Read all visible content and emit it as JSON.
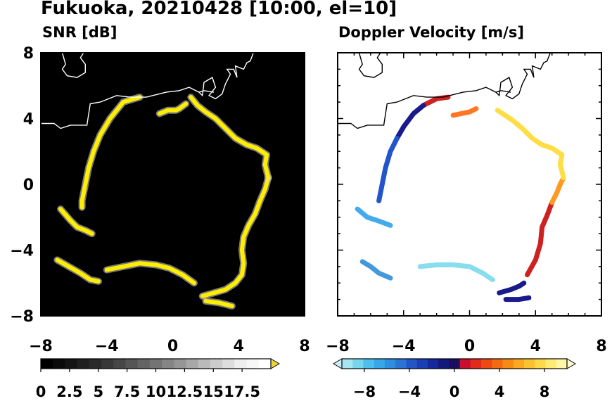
{
  "figure": {
    "title": "Fukuoka, 20210428 [10:00, el=10]"
  },
  "chart_data": [
    {
      "type": "heatmap",
      "title": "SNR [dB]",
      "xlim": [
        -8,
        8
      ],
      "ylim": [
        -8,
        8
      ],
      "xticks": [
        -8,
        -4,
        0,
        4,
        8
      ],
      "yticks": [
        -8,
        -4,
        0,
        4,
        8
      ],
      "xtick_labels": [
        "−8",
        "−4",
        "0",
        "4",
        "8"
      ],
      "ytick_labels": [
        "−8",
        "−4",
        "0",
        "4",
        "8"
      ],
      "background": "#000000",
      "features": [
        {
          "name": "west-shore",
          "color": "#ffee00",
          "points": [
            [
              -2,
              5.3
            ],
            [
              -3,
              5.0
            ],
            [
              -3.8,
              4.0
            ],
            [
              -4.4,
              3.0
            ],
            [
              -4.8,
              2.0
            ],
            [
              -5.1,
              1.0
            ],
            [
              -5.3,
              0
            ],
            [
              -5.5,
              -1.0
            ],
            [
              -5.5,
              -1.4
            ]
          ]
        },
        {
          "name": "southwest-spit",
          "color": "#ffee00",
          "points": [
            [
              -6.8,
              -1.5
            ],
            [
              -6.2,
              -2.2
            ],
            [
              -5.8,
              -2.6
            ],
            [
              -5.3,
              -2.8
            ],
            [
              -4.9,
              -3.0
            ]
          ]
        },
        {
          "name": "south-shore-west",
          "color": "#ffee00",
          "points": [
            [
              -7.0,
              -4.6
            ],
            [
              -6.3,
              -5.0
            ],
            [
              -5.6,
              -5.4
            ],
            [
              -5.0,
              -5.8
            ],
            [
              -4.5,
              -5.9
            ]
          ]
        },
        {
          "name": "south-shore",
          "color": "#ffee00",
          "points": [
            [
              -4.0,
              -5.2
            ],
            [
              -3.0,
              -5.0
            ],
            [
              -2.0,
              -4.8
            ],
            [
              -1.0,
              -4.9
            ],
            [
              -0.2,
              -5.1
            ],
            [
              0.6,
              -5.5
            ],
            [
              1.3,
              -6.0
            ]
          ]
        },
        {
          "name": "southeast-shore",
          "color": "#ffee00",
          "points": [
            [
              1.8,
              -6.8
            ],
            [
              2.5,
              -6.6
            ],
            [
              3.2,
              -6.4
            ],
            [
              3.8,
              -6.0
            ],
            [
              4.2,
              -5.5
            ],
            [
              4.3,
              -4.8
            ],
            [
              4.2,
              -4.0
            ],
            [
              4.3,
              -3.2
            ],
            [
              4.6,
              -2.5
            ],
            [
              5.0,
              -1.8
            ],
            [
              5.3,
              -1.0
            ],
            [
              5.6,
              -0.3
            ],
            [
              5.8,
              0.4
            ]
          ]
        },
        {
          "name": "southeast-lower",
          "color": "#ffee00",
          "points": [
            [
              2.0,
              -7.1
            ],
            [
              2.8,
              -7.2
            ],
            [
              3.6,
              -7.4
            ]
          ]
        },
        {
          "name": "east-shore",
          "color": "#ffee00",
          "points": [
            [
              5.8,
              0.4
            ],
            [
              5.6,
              1.2
            ],
            [
              5.7,
              1.8
            ],
            [
              5.1,
              2.2
            ],
            [
              4.5,
              2.4
            ],
            [
              3.8,
              2.8
            ],
            [
              3.2,
              3.4
            ],
            [
              2.6,
              4.0
            ],
            [
              2.0,
              4.4
            ],
            [
              1.5,
              4.8
            ],
            [
              1.1,
              5.3
            ]
          ]
        },
        {
          "name": "north-shore",
          "color": "#ffee00",
          "points": [
            [
              -0.8,
              4.3
            ],
            [
              -0.3,
              4.5
            ],
            [
              0.2,
              4.5
            ],
            [
              0.4,
              4.6
            ],
            [
              0.8,
              4.9
            ]
          ]
        }
      ]
    },
    {
      "type": "heatmap",
      "title": "Doppler Velocity [m/s]",
      "xlim": [
        -8,
        8
      ],
      "ylim": [
        -8,
        8
      ],
      "xticks": [
        -8,
        -4,
        0,
        4,
        8
      ],
      "yticks": [
        -8,
        -4,
        0,
        4,
        8
      ],
      "xtick_labels": [
        "−8",
        "−4",
        "0",
        "4",
        "8"
      ],
      "ytick_labels": [
        "−8",
        "−4",
        "0",
        "4",
        "8"
      ],
      "background": "#ffffff",
      "features": [
        {
          "name": "west-shore-north",
          "color": "#cc2222",
          "points": [
            [
              -1.3,
              5.3
            ],
            [
              -2.0,
              5.2
            ],
            [
              -2.8,
              4.8
            ]
          ]
        },
        {
          "name": "west-shore-mid",
          "color": "#1a1a8c",
          "points": [
            [
              -2.8,
              4.8
            ],
            [
              -3.4,
              4.3
            ],
            [
              -4.0,
              3.5
            ],
            [
              -4.4,
              2.8
            ]
          ]
        },
        {
          "name": "west-shore-south",
          "color": "#2255cc",
          "points": [
            [
              -4.4,
              2.8
            ],
            [
              -4.8,
              2.0
            ],
            [
              -5.1,
              1.0
            ],
            [
              -5.3,
              0
            ],
            [
              -5.5,
              -1.0
            ]
          ]
        },
        {
          "name": "southwest-spit",
          "color": "#44aaee",
          "points": [
            [
              -6.8,
              -1.5
            ],
            [
              -6.2,
              -2.0
            ],
            [
              -5.6,
              -2.2
            ],
            [
              -4.8,
              -2.5
            ]
          ]
        },
        {
          "name": "south-shore-west",
          "color": "#4499dd",
          "points": [
            [
              -6.5,
              -4.7
            ],
            [
              -6.0,
              -5.0
            ],
            [
              -5.5,
              -5.4
            ],
            [
              -4.8,
              -5.7
            ]
          ]
        },
        {
          "name": "south-shore",
          "color": "#88ddee",
          "points": [
            [
              -3.0,
              -5.0
            ],
            [
              -2.0,
              -4.9
            ],
            [
              -1.0,
              -4.9
            ],
            [
              0,
              -5.0
            ],
            [
              0.8,
              -5.4
            ],
            [
              1.4,
              -5.8
            ]
          ]
        },
        {
          "name": "southeast-lower",
          "color": "#1a1a8c",
          "points": [
            [
              1.8,
              -6.6
            ],
            [
              2.5,
              -6.4
            ],
            [
              3.0,
              -6.2
            ],
            [
              3.3,
              -6.0
            ]
          ]
        },
        {
          "name": "southeast-tail",
          "color": "#1a1a8c",
          "points": [
            [
              2.2,
              -7.0
            ],
            [
              3.0,
              -7.0
            ],
            [
              3.6,
              -6.9
            ]
          ]
        },
        {
          "name": "southeast-upper",
          "color": "#cc2222",
          "points": [
            [
              3.5,
              -5.5
            ],
            [
              4.0,
              -4.6
            ],
            [
              4.3,
              -3.6
            ],
            [
              4.4,
              -2.6
            ],
            [
              4.7,
              -1.9
            ],
            [
              5.0,
              -1.1
            ]
          ]
        },
        {
          "name": "east-shore-lower",
          "color": "#ff9922",
          "points": [
            [
              5.0,
              -1.1
            ],
            [
              5.3,
              -0.5
            ],
            [
              5.5,
              0
            ],
            [
              5.7,
              0.4
            ]
          ]
        },
        {
          "name": "east-shore-upper",
          "color": "#ffdd44",
          "points": [
            [
              5.7,
              0.4
            ],
            [
              5.5,
              1.2
            ],
            [
              5.6,
              1.8
            ],
            [
              5.0,
              2.2
            ],
            [
              4.4,
              2.4
            ],
            [
              3.8,
              2.8
            ],
            [
              3.2,
              3.4
            ],
            [
              2.6,
              3.9
            ],
            [
              2.0,
              4.3
            ],
            [
              1.7,
              4.5
            ]
          ]
        },
        {
          "name": "north-shore",
          "color": "#ff7722",
          "points": [
            [
              -1.0,
              4.2
            ],
            [
              -0.5,
              4.3
            ],
            [
              0,
              4.4
            ],
            [
              0.4,
              4.6
            ]
          ]
        }
      ]
    }
  ],
  "coastline": {
    "color_on_dark": "#ffffff",
    "color_on_light": "#000000",
    "paths": [
      [
        [
          -8,
          3.7
        ],
        [
          -7.2,
          3.7
        ],
        [
          -6.8,
          3.4
        ],
        [
          -6.2,
          3.6
        ],
        [
          -5.2,
          3.6
        ],
        [
          -5.0,
          4.9
        ],
        [
          -4.4,
          5.0
        ],
        [
          -3.4,
          5.4
        ],
        [
          -2.6,
          5.3
        ],
        [
          -1.6,
          5.3
        ],
        [
          -0.4,
          5.6
        ],
        [
          0.4,
          5.7
        ],
        [
          1.0,
          5.9
        ],
        [
          1.6,
          5.6
        ],
        [
          1.8,
          5.4
        ],
        [
          1.9,
          6.2
        ],
        [
          2.4,
          6.5
        ],
        [
          2.6,
          5.9
        ],
        [
          2.2,
          5.4
        ],
        [
          2.6,
          5.2
        ],
        [
          3.0,
          5.5
        ],
        [
          3.2,
          6.1
        ],
        [
          3.5,
          6.7
        ],
        [
          3.3,
          7.0
        ],
        [
          3.7,
          7.0
        ],
        [
          3.9,
          6.5
        ],
        [
          3.8,
          7.2
        ],
        [
          4.3,
          7.0
        ],
        [
          4.5,
          7.4
        ],
        [
          4.7,
          7.5
        ],
        [
          4.9,
          8.0
        ]
      ],
      [
        [
          -6.7,
          8.0
        ],
        [
          -6.5,
          7.3
        ],
        [
          -6.7,
          7.0
        ],
        [
          -6.4,
          6.6
        ],
        [
          -5.8,
          6.5
        ],
        [
          -5.3,
          6.8
        ],
        [
          -5.3,
          7.3
        ],
        [
          -5.6,
          7.7
        ],
        [
          -5.4,
          8.0
        ]
      ],
      [
        [
          1.6,
          5.6
        ],
        [
          1.9,
          5.7
        ],
        [
          2.5,
          5.6
        ]
      ]
    ]
  },
  "colorbars": [
    {
      "name": "snr",
      "tick_labels": [
        "0",
        "2.5",
        "5",
        "7.5",
        "10",
        "12.5",
        "15",
        "17.5"
      ],
      "colors": [
        "#000000",
        "#0a0a0a",
        "#141414",
        "#1f1f1f",
        "#2b2b2b",
        "#383838",
        "#464646",
        "#555555",
        "#646464",
        "#747474",
        "#858585",
        "#969696",
        "#a8a8a8",
        "#bababa",
        "#cccccc",
        "#dddddd",
        "#eeeeee",
        "#f7f7f7",
        "#ffffff"
      ],
      "extend_color": "#f2d43a"
    },
    {
      "name": "doppler",
      "tick_labels": [
        "−8",
        "−4",
        "0",
        "4",
        "8"
      ],
      "colors": [
        "#a5e6f2",
        "#77d6ee",
        "#4cbfee",
        "#36a8e8",
        "#2e8ee0",
        "#2a74d6",
        "#2256c8",
        "#1c3eb4",
        "#16299c",
        "#14187c",
        "#1a0f5c",
        "#c8102e",
        "#e22a1e",
        "#ee4a14",
        "#f36a10",
        "#f78a14",
        "#f9a820",
        "#fbc230",
        "#fcd84a",
        "#fdec74",
        "#fef5a6"
      ],
      "extend_left_color": "#c9f0f8",
      "extend_right_color": "#fffad0"
    }
  ]
}
